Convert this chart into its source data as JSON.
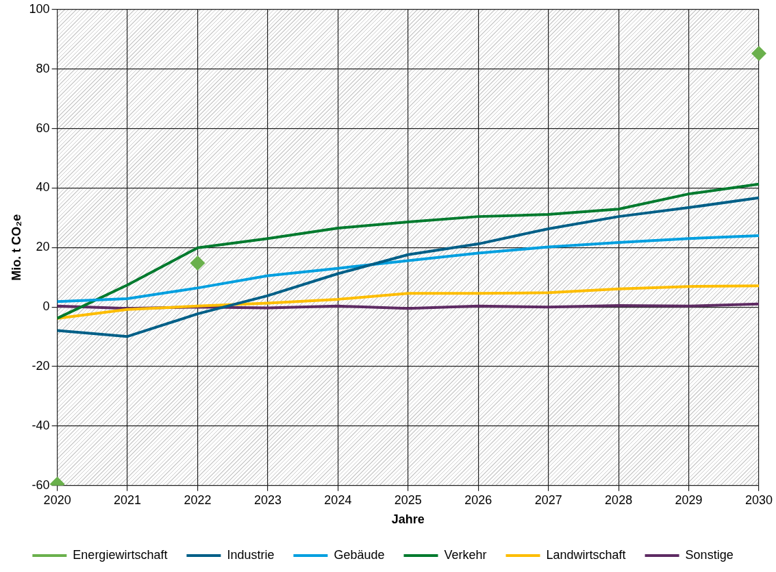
{
  "chart_data": {
    "type": "line",
    "xlabel": "Jahre",
    "ylabel": "Mio. t CO₂e",
    "categories": [
      "2020",
      "2021",
      "2022",
      "2023",
      "2024",
      "2025",
      "2026",
      "2027",
      "2028",
      "2029",
      "2030"
    ],
    "series": [
      {
        "name": "Energiewirtschaft",
        "type": "scatter",
        "marker": "diamond",
        "color": "#6ab04c",
        "values": [
          -59.5,
          null,
          14.8,
          null,
          null,
          null,
          null,
          null,
          null,
          null,
          85.2
        ]
      },
      {
        "name": "Industrie",
        "color": "#005f87",
        "values": [
          -7.9,
          -9.9,
          -2.3,
          3.8,
          11.2,
          17.6,
          21.2,
          26.3,
          30.4,
          33.4,
          36.7
        ]
      },
      {
        "name": "Gebäude",
        "color": "#009fdf",
        "values": [
          1.8,
          2.8,
          6.4,
          10.5,
          13,
          15.6,
          18.1,
          20.2,
          21.7,
          23,
          24
        ]
      },
      {
        "name": "Verkehr",
        "color": "#007a2e",
        "values": [
          -3.8,
          7.4,
          19.9,
          23,
          26.5,
          28.6,
          30.4,
          31.1,
          32.9,
          38,
          41.3
        ]
      },
      {
        "name": "Landwirtschaft",
        "color": "#fdbd00",
        "values": [
          -3.8,
          -0.8,
          0.3,
          1.3,
          2.6,
          4.6,
          4.6,
          4.8,
          6.1,
          6.9,
          7.1
        ]
      },
      {
        "name": "Sonstige",
        "color": "#5e2b63",
        "values": [
          0.3,
          -0.5,
          0,
          -0.3,
          0.3,
          -0.5,
          0.3,
          0,
          0.5,
          0.3,
          1
        ]
      }
    ],
    "ylim": [
      -60,
      100
    ],
    "yticks": [
      -60,
      -40,
      -20,
      0,
      20,
      40,
      60,
      80,
      100
    ],
    "grid": true,
    "legend": "bottom",
    "marker": "none",
    "line_style": "solid"
  }
}
